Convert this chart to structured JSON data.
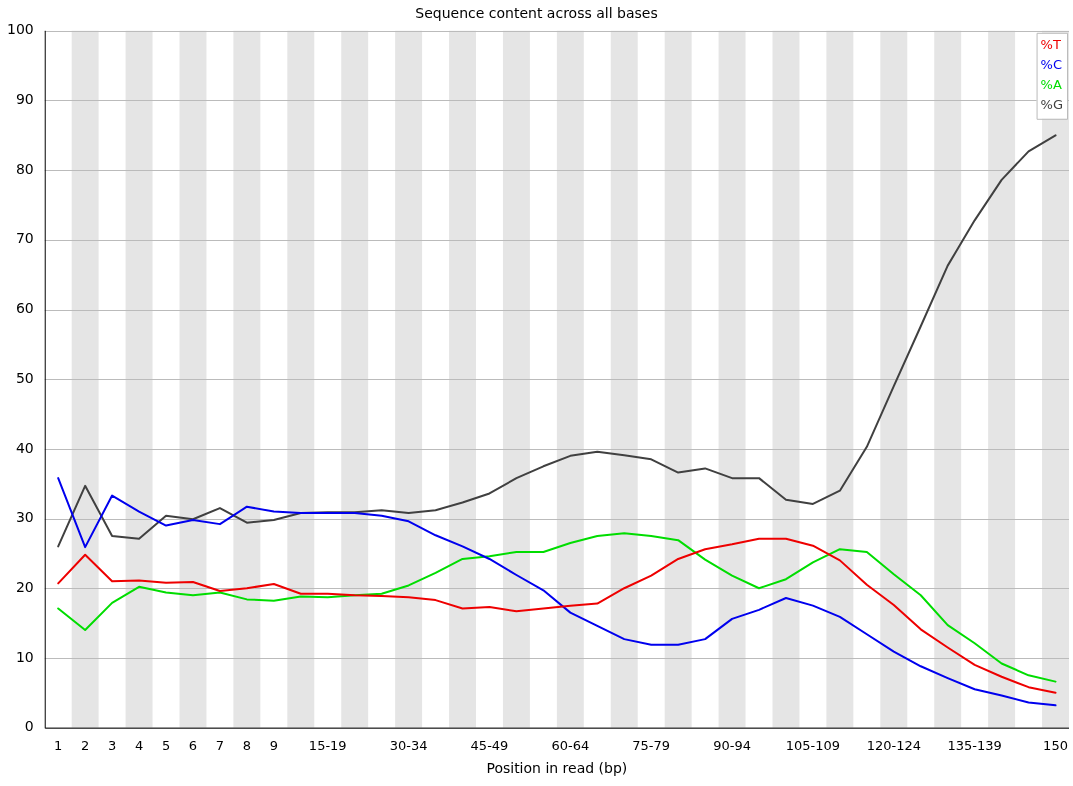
{
  "chart_data": {
    "type": "line",
    "title": "Sequence content across all bases",
    "xlabel": "Position in read (bp)",
    "categories": [
      "1",
      "2",
      "3",
      "4",
      "5",
      "6",
      "7",
      "8",
      "9",
      null,
      "15-19",
      null,
      null,
      "30-34",
      null,
      null,
      "45-49",
      null,
      null,
      "60-64",
      null,
      null,
      "75-79",
      null,
      null,
      "90-94",
      null,
      null,
      "105-109",
      null,
      null,
      "120-124",
      null,
      null,
      "135-139",
      null,
      null,
      "150"
    ],
    "series": [
      {
        "name": "%T",
        "color": "#ee0000",
        "values": [
          20.7,
          24.8,
          21.0,
          21.1,
          20.8,
          20.9,
          19.6,
          20.0,
          20.6,
          19.2,
          19.2,
          19.0,
          18.9,
          18.7,
          18.3,
          17.1,
          17.3,
          16.7,
          17.1,
          17.5,
          17.8,
          20.0,
          21.8,
          24.2,
          25.6,
          26.3,
          27.1,
          27.1,
          26.1,
          24.0,
          20.5,
          17.6,
          14.1,
          11.5,
          9.0,
          7.3,
          5.8,
          5.0
        ]
      },
      {
        "name": "%C",
        "color": "#0000ee",
        "values": [
          35.8,
          25.9,
          33.3,
          31.0,
          29.0,
          29.8,
          29.2,
          31.7,
          31.0,
          30.8,
          30.8,
          30.8,
          30.4,
          29.6,
          27.6,
          26.0,
          24.2,
          21.9,
          19.7,
          16.5,
          14.6,
          12.7,
          11.9,
          11.9,
          12.7,
          15.6,
          16.9,
          18.6,
          17.5,
          15.9,
          13.4,
          10.9,
          8.8,
          7.1,
          5.5,
          4.6,
          3.6,
          3.2
        ]
      },
      {
        "name": "%A",
        "color": "#00dd00",
        "values": [
          17.1,
          14.0,
          17.9,
          20.2,
          19.4,
          19.0,
          19.4,
          18.4,
          18.2,
          18.8,
          18.7,
          19.0,
          19.2,
          20.4,
          22.2,
          24.2,
          24.6,
          25.2,
          25.2,
          26.5,
          27.5,
          27.9,
          27.5,
          26.9,
          24.1,
          21.8,
          20.0,
          21.3,
          23.7,
          25.6,
          25.2,
          22.0,
          19.0,
          14.7,
          12.1,
          9.2,
          7.5,
          6.6
        ]
      },
      {
        "name": "%G",
        "color": "#404040",
        "values": [
          26.0,
          34.7,
          27.5,
          27.1,
          30.4,
          29.9,
          31.5,
          29.4,
          29.8,
          30.8,
          30.9,
          30.9,
          31.2,
          30.8,
          31.2,
          32.3,
          33.6,
          35.8,
          37.5,
          39.0,
          39.6,
          39.1,
          38.5,
          36.6,
          37.2,
          35.8,
          35.8,
          32.7,
          32.1,
          34.0,
          40.3,
          49.0,
          57.6,
          66.3,
          72.8,
          78.6,
          82.7,
          85.0
        ]
      }
    ],
    "ylim": [
      0,
      100
    ],
    "yticks": [
      0,
      10,
      20,
      30,
      40,
      50,
      60,
      70,
      80,
      90,
      100
    ],
    "grid": "y",
    "legend": "top right",
    "marker": "none",
    "line_style": "solid"
  }
}
